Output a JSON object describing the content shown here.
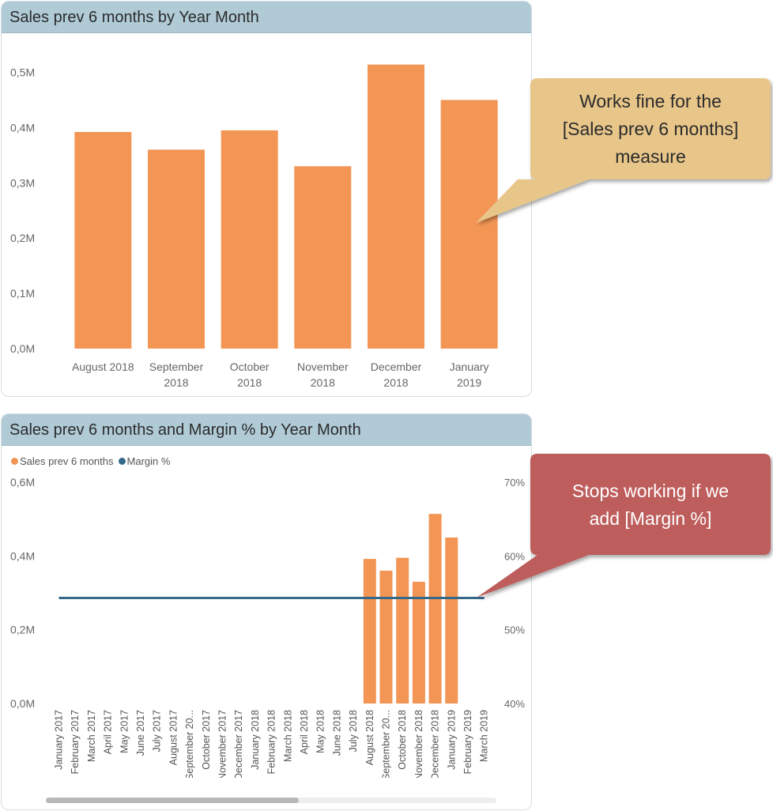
{
  "chart1": {
    "title": "Sales prev 6 months by Year Month",
    "chart_data": {
      "type": "bar",
      "title": "Sales prev 6 months by Year Month",
      "categories": [
        "August 2018",
        "September 2018",
        "October 2018",
        "November 2018",
        "December 2018",
        "January 2019"
      ],
      "category_lines": [
        [
          "August 2018"
        ],
        [
          "September",
          "2018"
        ],
        [
          "October",
          "2018"
        ],
        [
          "November",
          "2018"
        ],
        [
          "December",
          "2018"
        ],
        [
          "January",
          "2019"
        ]
      ],
      "values": [
        0.392,
        0.36,
        0.395,
        0.33,
        0.514,
        0.45
      ],
      "y_ticks": [
        "0,0M",
        "0,1M",
        "0,2M",
        "0,3M",
        "0,4M",
        "0,5M"
      ],
      "ylim": [
        0,
        0.5
      ],
      "color": "#f29555"
    }
  },
  "chart2": {
    "title": "Sales prev 6 months and Margin % by Year Month",
    "legend": {
      "sales_label": "Sales prev 6 months",
      "margin_label": "Margin %",
      "sales_color": "#f29555",
      "margin_color": "#35698a"
    },
    "chart_data": {
      "type": "bar",
      "title": "Sales prev 6 months and Margin % by Year Month",
      "categories": [
        "January 2017",
        "February 2017",
        "March 2017",
        "April 2017",
        "May 2017",
        "June 2017",
        "July 2017",
        "August 2017",
        "September 20...",
        "October 2017",
        "November 2017",
        "December 2017",
        "January 2018",
        "February 2018",
        "March 2018",
        "April 2018",
        "May 2018",
        "June 2018",
        "July 2018",
        "August 2018",
        "September 20...",
        "October 2018",
        "November 2018",
        "December 2018",
        "January 2019",
        "February 2019",
        "March 2019"
      ],
      "series": [
        {
          "name": "Sales prev 6 months",
          "type": "bar",
          "values": [
            null,
            null,
            null,
            null,
            null,
            null,
            null,
            null,
            null,
            null,
            null,
            null,
            null,
            null,
            null,
            null,
            null,
            null,
            null,
            0.392,
            0.36,
            0.395,
            0.33,
            0.514,
            0.45,
            null,
            null
          ]
        },
        {
          "name": "Margin %",
          "type": "line",
          "axis": "right",
          "values": [
            54.3,
            54.3,
            54.3,
            54.3,
            54.3,
            54.3,
            54.3,
            54.3,
            54.3,
            54.3,
            54.3,
            54.3,
            54.3,
            54.3,
            54.3,
            54.3,
            54.3,
            54.3,
            54.3,
            54.3,
            54.3,
            54.3,
            54.3,
            54.3,
            54.3,
            54.3,
            54.3
          ]
        }
      ],
      "y_ticks": [
        "0,0M",
        "0,2M",
        "0,4M",
        "0,6M"
      ],
      "ylim": [
        0,
        0.6
      ],
      "y2_ticks": [
        "40%",
        "50%",
        "60%",
        "70%"
      ],
      "y2lim": [
        40,
        70
      ]
    }
  },
  "callout1": {
    "text": "Works fine for the [Sales prev 6 months] measure",
    "lines": [
      "Works fine for the",
      "[Sales prev 6 months]",
      "measure"
    ],
    "bg_color": "#e8c68a",
    "text_color": "#2b2b2b"
  },
  "callout2": {
    "text": "Stops working if we add [Margin %]",
    "lines": [
      "Stops working if we",
      "add [Margin %]"
    ],
    "bg_color": "#bd5d5b",
    "text_color": "#ffffff"
  }
}
